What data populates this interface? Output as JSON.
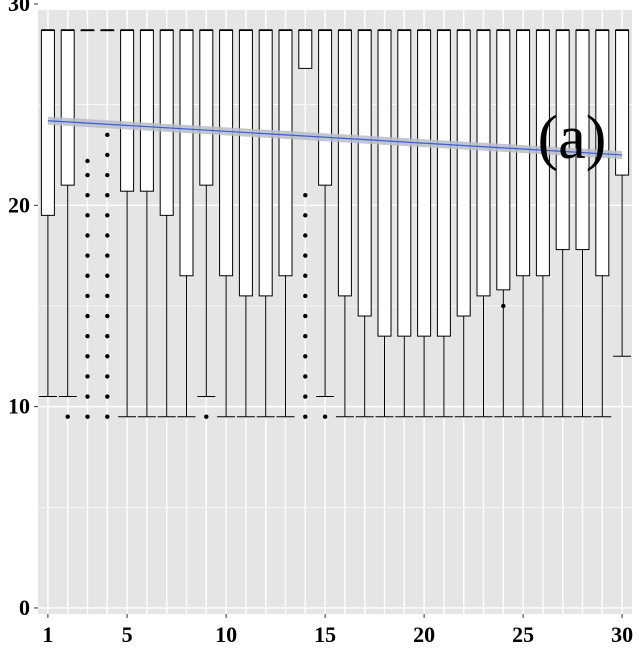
{
  "chart_data": {
    "type": "box",
    "panel_label": "(a)",
    "x": [
      1,
      2,
      3,
      4,
      5,
      6,
      7,
      8,
      9,
      10,
      11,
      12,
      13,
      14,
      15,
      16,
      17,
      18,
      19,
      20,
      21,
      22,
      23,
      24,
      25,
      26,
      27,
      28,
      29,
      30
    ],
    "x_ticks": [
      1,
      5,
      10,
      15,
      20,
      25,
      30
    ],
    "y_ticks": [
      0,
      10,
      20,
      30
    ],
    "xlim": [
      0.5,
      30.5
    ],
    "ylim": [
      -0.3,
      29.7
    ],
    "grid": true,
    "boxes": [
      {
        "x": 1,
        "q1": 19.5,
        "median": 28.7,
        "q3": 28.7,
        "whisker_low": 10.5,
        "whisker_high": 28.7,
        "outliers": []
      },
      {
        "x": 2,
        "q1": 21.0,
        "median": 28.7,
        "q3": 28.7,
        "whisker_low": 10.5,
        "whisker_high": 28.7,
        "outliers": [
          9.5
        ]
      },
      {
        "x": 3,
        "q1": 28.7,
        "median": 28.7,
        "q3": 28.7,
        "whisker_low": 28.7,
        "whisker_high": 28.7,
        "outliers": [
          9.5,
          10.5,
          11.5,
          12.5,
          13.5,
          14.5,
          15.5,
          16.5,
          17.5,
          18.5,
          19.5,
          20.5,
          21.5,
          22.2
        ]
      },
      {
        "x": 4,
        "q1": 28.7,
        "median": 28.7,
        "q3": 28.7,
        "whisker_low": 28.7,
        "whisker_high": 28.7,
        "outliers": [
          9.5,
          10.5,
          11.5,
          12.5,
          13.5,
          14.5,
          15.5,
          16.5,
          17.5,
          18.5,
          19.5,
          20.5,
          21.5,
          22.5,
          23.5
        ]
      },
      {
        "x": 5,
        "q1": 20.7,
        "median": 28.7,
        "q3": 28.7,
        "whisker_low": 9.5,
        "whisker_high": 28.7,
        "outliers": []
      },
      {
        "x": 6,
        "q1": 20.7,
        "median": 28.7,
        "q3": 28.7,
        "whisker_low": 9.5,
        "whisker_high": 28.7,
        "outliers": []
      },
      {
        "x": 7,
        "q1": 19.5,
        "median": 28.7,
        "q3": 28.7,
        "whisker_low": 9.5,
        "whisker_high": 28.7,
        "outliers": []
      },
      {
        "x": 8,
        "q1": 16.5,
        "median": 28.7,
        "q3": 28.7,
        "whisker_low": 9.5,
        "whisker_high": 28.7,
        "outliers": []
      },
      {
        "x": 9,
        "q1": 21.0,
        "median": 28.7,
        "q3": 28.7,
        "whisker_low": 10.5,
        "whisker_high": 28.7,
        "outliers": [
          9.5
        ]
      },
      {
        "x": 10,
        "q1": 16.5,
        "median": 28.7,
        "q3": 28.7,
        "whisker_low": 9.5,
        "whisker_high": 28.7,
        "outliers": []
      },
      {
        "x": 11,
        "q1": 15.5,
        "median": 28.7,
        "q3": 28.7,
        "whisker_low": 9.5,
        "whisker_high": 28.7,
        "outliers": []
      },
      {
        "x": 12,
        "q1": 15.5,
        "median": 28.7,
        "q3": 28.7,
        "whisker_low": 9.5,
        "whisker_high": 28.7,
        "outliers": []
      },
      {
        "x": 13,
        "q1": 16.5,
        "median": 28.7,
        "q3": 28.7,
        "whisker_low": 9.5,
        "whisker_high": 28.7,
        "outliers": []
      },
      {
        "x": 14,
        "q1": 26.8,
        "median": 28.7,
        "q3": 28.7,
        "whisker_low": 26.8,
        "whisker_high": 28.7,
        "outliers": [
          9.5,
          10.5,
          11.5,
          12.5,
          13.5,
          14.5,
          15.5,
          16.5,
          17.5,
          18.5,
          19.5,
          20.5
        ]
      },
      {
        "x": 15,
        "q1": 21.0,
        "median": 28.7,
        "q3": 28.7,
        "whisker_low": 10.5,
        "whisker_high": 28.7,
        "outliers": [
          9.5
        ]
      },
      {
        "x": 16,
        "q1": 15.5,
        "median": 28.7,
        "q3": 28.7,
        "whisker_low": 9.5,
        "whisker_high": 28.7,
        "outliers": []
      },
      {
        "x": 17,
        "q1": 14.5,
        "median": 28.7,
        "q3": 28.7,
        "whisker_low": 9.5,
        "whisker_high": 28.7,
        "outliers": []
      },
      {
        "x": 18,
        "q1": 13.5,
        "median": 28.7,
        "q3": 28.7,
        "whisker_low": 9.5,
        "whisker_high": 28.7,
        "outliers": []
      },
      {
        "x": 19,
        "q1": 13.5,
        "median": 28.7,
        "q3": 28.7,
        "whisker_low": 9.5,
        "whisker_high": 28.7,
        "outliers": []
      },
      {
        "x": 20,
        "q1": 13.5,
        "median": 28.7,
        "q3": 28.7,
        "whisker_low": 9.5,
        "whisker_high": 28.7,
        "outliers": []
      },
      {
        "x": 21,
        "q1": 13.5,
        "median": 28.7,
        "q3": 28.7,
        "whisker_low": 9.5,
        "whisker_high": 28.7,
        "outliers": []
      },
      {
        "x": 22,
        "q1": 14.5,
        "median": 28.7,
        "q3": 28.7,
        "whisker_low": 9.5,
        "whisker_high": 28.7,
        "outliers": []
      },
      {
        "x": 23,
        "q1": 15.5,
        "median": 28.7,
        "q3": 28.7,
        "whisker_low": 9.5,
        "whisker_high": 28.7,
        "outliers": []
      },
      {
        "x": 24,
        "q1": 15.8,
        "median": 28.7,
        "q3": 28.7,
        "whisker_low": 9.5,
        "whisker_high": 28.7,
        "outliers": [
          15.0
        ]
      },
      {
        "x": 25,
        "q1": 16.5,
        "median": 28.7,
        "q3": 28.7,
        "whisker_low": 9.5,
        "whisker_high": 28.7,
        "outliers": []
      },
      {
        "x": 26,
        "q1": 16.5,
        "median": 28.7,
        "q3": 28.7,
        "whisker_low": 9.5,
        "whisker_high": 28.7,
        "outliers": []
      },
      {
        "x": 27,
        "q1": 17.8,
        "median": 28.7,
        "q3": 28.7,
        "whisker_low": 9.5,
        "whisker_high": 28.7,
        "outliers": []
      },
      {
        "x": 28,
        "q1": 17.8,
        "median": 28.7,
        "q3": 28.7,
        "whisker_low": 9.5,
        "whisker_high": 28.7,
        "outliers": []
      },
      {
        "x": 29,
        "q1": 16.5,
        "median": 28.7,
        "q3": 28.7,
        "whisker_low": 9.5,
        "whisker_high": 28.7,
        "outliers": []
      },
      {
        "x": 30,
        "q1": 21.5,
        "median": 28.7,
        "q3": 28.7,
        "whisker_low": 12.5,
        "whisker_high": 28.7,
        "outliers": []
      }
    ],
    "trend_line": {
      "x": [
        1,
        30
      ],
      "y": [
        24.2,
        22.5
      ]
    },
    "colors": {
      "panel_background": "#e5e5e5",
      "grid": "#ffffff",
      "box_fill": "#ffffff",
      "box_line": "#000000",
      "outlier": "#000000",
      "trend_line": "#3b5bdb",
      "trend_band": "#b8bec8"
    }
  }
}
